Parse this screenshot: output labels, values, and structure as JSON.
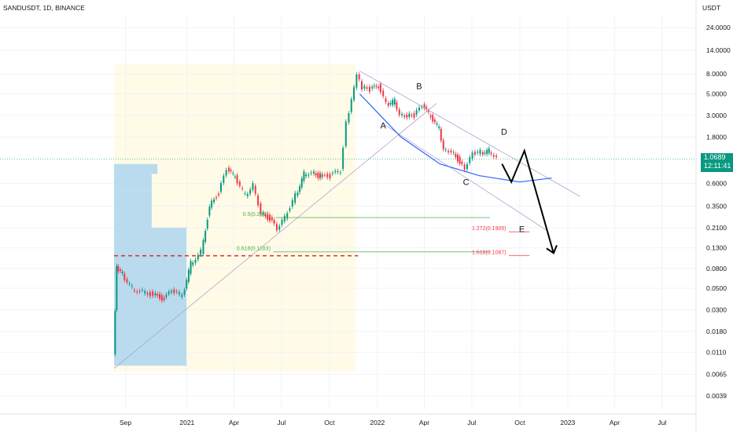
{
  "header": {
    "symbol": "SANDUSDT, 1D, BINANCE",
    "unit": "USDT"
  },
  "price": {
    "last": "1.0689",
    "countdown": "12:11:41",
    "color": "#089981"
  },
  "colors": {
    "up": "#089981",
    "down": "#f23645",
    "line_blue": "#2962ff",
    "volume_profile": "#a9d3f0",
    "bg_zone": "#fffbe6",
    "fib_green": "#4caf50",
    "fib_red": "#f23645",
    "poc": "#d32f2f",
    "arrow": "#000000"
  },
  "chart_data": {
    "type": "candlestick",
    "title": "SANDUSDT, 1D, BINANCE",
    "y_scale": "log",
    "ylim": [
      0.0028,
      33
    ],
    "y_ticks": [
      "24.0000",
      "14.0000",
      "8.0000",
      "5.0000",
      "3.0000",
      "1.8000",
      "1.0689",
      "0.6000",
      "0.3500",
      "0.2100",
      "0.1300",
      "0.0800",
      "0.0500",
      "0.0300",
      "0.0180",
      "0.0110",
      "0.0065",
      "0.0039"
    ],
    "x_ticks": [
      "Sep",
      "2021",
      "Apr",
      "Jul",
      "Oct",
      "2022",
      "Apr",
      "Jul",
      "Oct",
      "2023",
      "Apr",
      "Jul"
    ],
    "x_range": [
      "2020-08-14",
      "2023-08-20"
    ],
    "series": [
      {
        "points": [
          [
            "2020-08-14",
            0.01
          ],
          [
            "2020-08-20",
            0.08
          ],
          [
            "2020-09-01",
            0.07
          ],
          [
            "2020-09-20",
            0.05
          ],
          [
            "2020-10-10",
            0.047
          ],
          [
            "2020-10-30",
            0.043
          ],
          [
            "2020-11-20",
            0.039
          ],
          [
            "2020-12-05",
            0.046
          ],
          [
            "2020-12-25",
            0.042
          ],
          [
            "2021-01-10",
            0.09
          ],
          [
            "2021-01-30",
            0.12
          ],
          [
            "2021-02-15",
            0.35
          ],
          [
            "2021-03-05",
            0.48
          ],
          [
            "2021-03-20",
            0.82
          ],
          [
            "2021-04-05",
            0.7
          ],
          [
            "2021-04-25",
            0.45
          ],
          [
            "2021-05-10",
            0.6
          ],
          [
            "2021-05-25",
            0.3
          ],
          [
            "2021-06-15",
            0.25
          ],
          [
            "2021-06-25",
            0.19
          ],
          [
            "2021-07-15",
            0.3
          ],
          [
            "2021-07-30",
            0.45
          ],
          [
            "2021-08-15",
            0.75
          ],
          [
            "2021-08-30",
            0.8
          ],
          [
            "2021-09-15",
            0.7
          ],
          [
            "2021-10-05",
            0.72
          ],
          [
            "2021-10-25",
            0.8
          ],
          [
            "2021-11-05",
            2.5
          ],
          [
            "2021-11-15",
            4.5
          ],
          [
            "2021-11-25",
            8.4
          ],
          [
            "2021-12-05",
            5.8
          ],
          [
            "2021-12-20",
            5.5
          ],
          [
            "2022-01-05",
            6.0
          ],
          [
            "2022-01-20",
            3.9
          ],
          [
            "2022-02-05",
            4.2
          ],
          [
            "2022-02-15",
            3.2
          ],
          [
            "2022-03-01",
            3.0
          ],
          [
            "2022-03-15",
            3.0
          ],
          [
            "2022-03-30",
            3.7
          ],
          [
            "2022-04-15",
            2.9
          ],
          [
            "2022-05-01",
            2.2
          ],
          [
            "2022-05-10",
            1.4
          ],
          [
            "2022-05-25",
            1.3
          ],
          [
            "2022-06-10",
            1.0
          ],
          [
            "2022-06-20",
            0.8
          ],
          [
            "2022-07-05",
            1.2
          ],
          [
            "2022-07-20",
            1.25
          ],
          [
            "2022-08-05",
            1.3
          ],
          [
            "2022-08-20",
            1.15
          ]
        ]
      }
    ],
    "annotations": [
      {
        "text": "A",
        "x": "2022-01-12",
        "y": 2.2
      },
      {
        "text": "B",
        "x": "2022-03-22",
        "y": 5.6
      },
      {
        "text": "C",
        "x": "2022-06-20",
        "y": 0.58
      },
      {
        "text": "D",
        "x": "2022-09-01",
        "y": 1.9
      },
      {
        "text": "E",
        "x": "2022-10-05",
        "y": 0.19
      }
    ],
    "fib_levels": [
      {
        "label": "0.5(0.267)",
        "value": 0.267
      },
      {
        "label": "0.618(0.1183)",
        "value": 0.1183
      },
      {
        "label": "1.272(0.1905)",
        "value": 0.1905
      },
      {
        "label": "1.618(0.1087)",
        "value": 0.1087
      }
    ],
    "projection_path": [
      [
        "2022-08-28",
        0.95
      ],
      [
        "2022-09-15",
        0.62
      ],
      [
        "2022-10-10",
        1.3
      ],
      [
        "2022-12-05",
        0.115
      ]
    ],
    "curve_path": [
      [
        "2021-11-28",
        5.0
      ],
      [
        "2022-02-15",
        1.8
      ],
      [
        "2022-05-01",
        0.95
      ],
      [
        "2022-07-15",
        0.72
      ],
      [
        "2022-10-01",
        0.62
      ],
      [
        "2022-12-01",
        0.68
      ]
    ],
    "trendlines": [
      [
        [
          "2021-11-28",
          8.6
        ],
        [
          "2023-01-25",
          0.44
        ]
      ],
      [
        [
          "2022-01-10",
          2.5
        ],
        [
          "2022-11-20",
          0.2
        ]
      ],
      [
        [
          "2020-08-14",
          0.0075
        ],
        [
          "2022-04-25",
          4.0
        ]
      ]
    ],
    "poc_level": 0.108,
    "profile_bars": [
      {
        "y_top": 0.95,
        "y_bottom": 0.75,
        "width": 0.6
      },
      {
        "y_top": 0.75,
        "y_bottom": 0.5,
        "width": 0.52
      },
      {
        "y_top": 0.5,
        "y_bottom": 0.21,
        "width": 0.52
      },
      {
        "y_top": 0.21,
        "y_bottom": 0.008,
        "width": 1.0
      }
    ]
  }
}
